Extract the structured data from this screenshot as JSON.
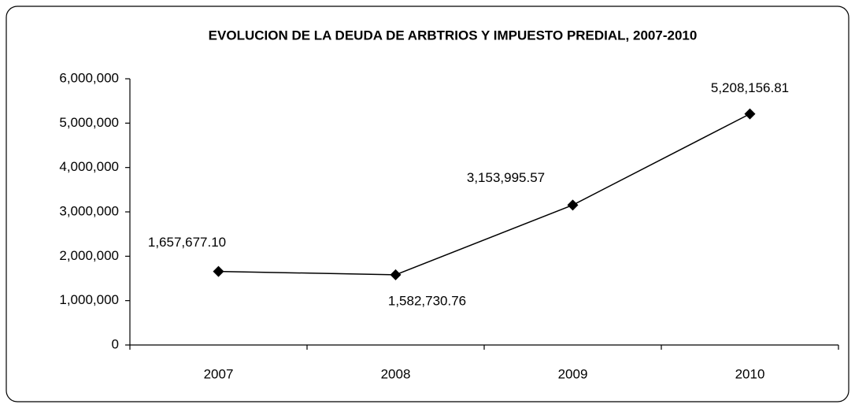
{
  "chart_data": {
    "type": "line",
    "title": "EVOLUCION DE LA DEUDA DE ARBTRIOS Y IMPUESTO PREDIAL, 2007-2010",
    "categories": [
      "2007",
      "2008",
      "2009",
      "2010"
    ],
    "values": [
      1657677.1,
      1582730.76,
      3153995.57,
      5208156.81
    ],
    "value_labels": [
      "1,657,677.10",
      "1,582,730.76",
      "3,153,995.57",
      "5,208,156.81"
    ],
    "color": "#000000",
    "ylim": [
      0,
      6000000
    ],
    "yticks": [
      0,
      {
        "value": 1000000,
        "label": "1,000,000"
      },
      {
        "value": 2000000,
        "label": "2,000,000"
      },
      {
        "value": 3000000,
        "label": "3,000,000"
      },
      {
        "value": 4000000,
        "label": "4,000,000"
      },
      {
        "value": 5000000,
        "label": "5,000,000"
      },
      {
        "value": 6000000,
        "label": "6,000,000"
      }
    ],
    "grid": false
  }
}
